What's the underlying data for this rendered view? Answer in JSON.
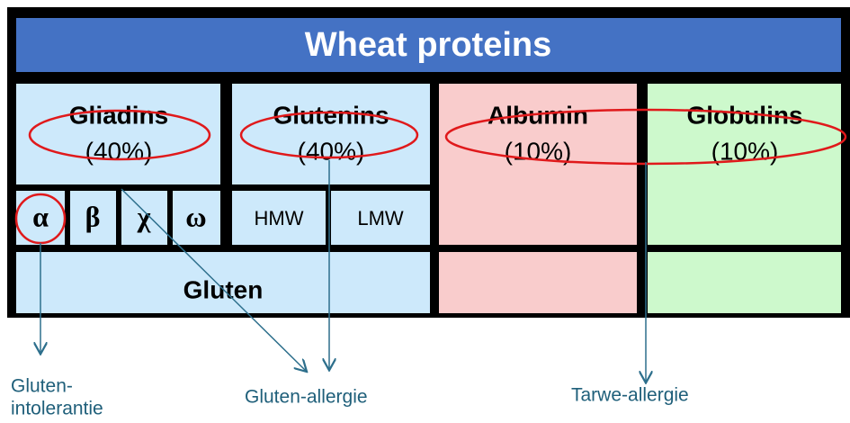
{
  "title": "Wheat proteins",
  "proteins": [
    {
      "name": "Gliadins",
      "share": "(40%)"
    },
    {
      "name": "Glutenins",
      "share": "(40%)"
    },
    {
      "name": "Albumin",
      "share": "(10%)"
    },
    {
      "name": "Globulins",
      "share": "(10%)"
    }
  ],
  "gliadin_types": [
    "α",
    "β",
    "χ",
    "ω"
  ],
  "glutenin_types": [
    "HMW",
    "LMW"
  ],
  "group": "Gluten",
  "labels": {
    "gluten_intolerance": [
      "Gluten-",
      "intolerantie"
    ],
    "gluten_allergy": "Gluten-allergie",
    "wheat_allergy": "Tarwe-allergie"
  }
}
